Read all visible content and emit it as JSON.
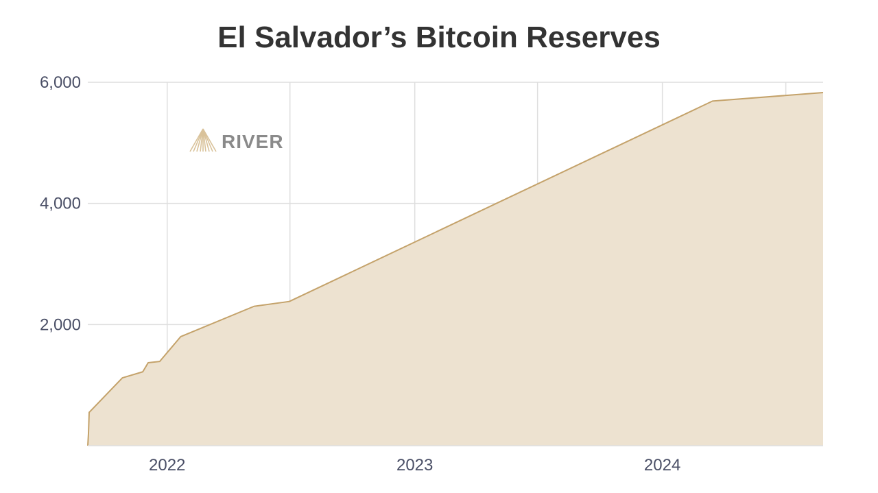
{
  "chart_data": {
    "type": "area",
    "title": "El Salvador’s Bitcoin Reserves",
    "xlabel": "",
    "ylabel": "",
    "x_ticks": [
      "2022",
      "2023",
      "2024"
    ],
    "y_ticks": [
      "2,000",
      "4,000",
      "6,000"
    ],
    "ylim": [
      0,
      6000
    ],
    "xlim": [
      "2021-09-06",
      "2024-08-25"
    ],
    "grid": true,
    "series": [
      {
        "points": [
          [
            "2021-09-06",
            0
          ],
          [
            "2021-09-07",
            200
          ],
          [
            "2021-09-08",
            550
          ],
          [
            "2021-10-27",
            1120
          ],
          [
            "2021-11-26",
            1220
          ],
          [
            "2021-12-04",
            1370
          ],
          [
            "2021-12-21",
            1391
          ],
          [
            "2022-01-21",
            1801
          ],
          [
            "2022-05-09",
            2301
          ],
          [
            "2022-06-30",
            2381
          ],
          [
            "2024-03-15",
            5690
          ],
          [
            "2024-08-25",
            5830
          ]
        ]
      }
    ],
    "colors": {
      "fill": "#ede2d0",
      "line": "#c4a26a",
      "grid": "#dedede"
    }
  },
  "watermark": {
    "text": "RIVER"
  }
}
